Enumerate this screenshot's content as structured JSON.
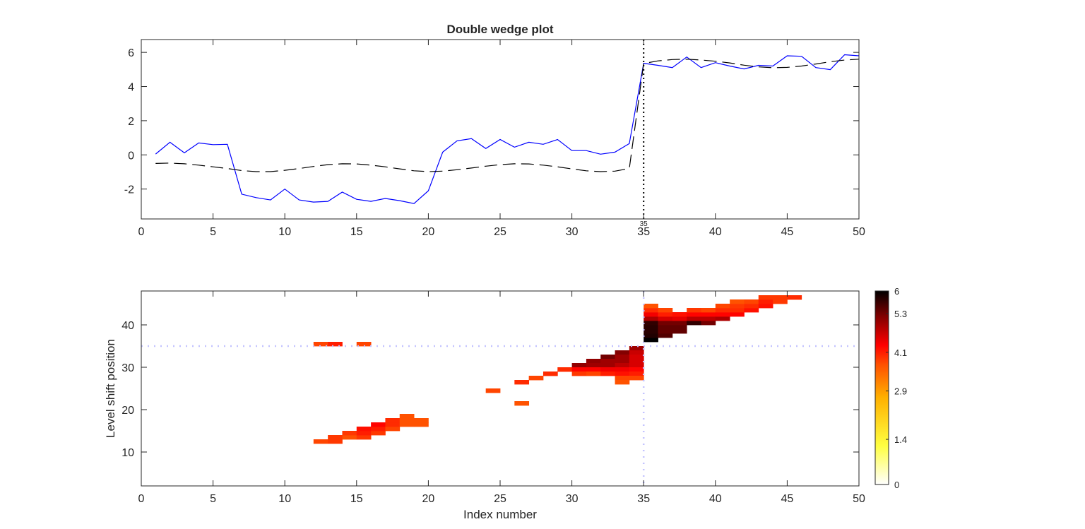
{
  "chart_data": [
    {
      "type": "line",
      "title": "Double wedge plot",
      "xlim": [
        0,
        50
      ],
      "ylim": [
        -3.75,
        6.75
      ],
      "xticks": [
        0,
        5,
        10,
        15,
        20,
        25,
        30,
        35,
        40,
        45,
        50
      ],
      "yticks": [
        -2,
        0,
        2,
        4,
        6
      ],
      "grid": false,
      "x": [
        1,
        2,
        3,
        4,
        5,
        6,
        7,
        8,
        9,
        10,
        11,
        12,
        13,
        14,
        15,
        16,
        17,
        18,
        19,
        20,
        21,
        22,
        23,
        24,
        25,
        26,
        27,
        28,
        29,
        30,
        31,
        32,
        33,
        34,
        35,
        36,
        37,
        38,
        39,
        40,
        41,
        42,
        43,
        44,
        45,
        46,
        47,
        48,
        49,
        50
      ],
      "series": [
        {
          "style": "solid",
          "color": "#0000ff",
          "values": [
            0.05,
            0.74,
            0.12,
            0.7,
            0.6,
            0.62,
            -2.3,
            -2.5,
            -2.64,
            -2.0,
            -2.64,
            -2.76,
            -2.72,
            -2.18,
            -2.6,
            -2.72,
            -2.55,
            -2.68,
            -2.85,
            -2.1,
            0.16,
            0.82,
            0.95,
            0.37,
            0.9,
            0.45,
            0.74,
            0.62,
            0.9,
            0.25,
            0.25,
            0.04,
            0.16,
            0.66,
            5.36,
            5.24,
            5.11,
            5.73,
            5.11,
            5.4,
            5.2,
            5.03,
            5.24,
            5.2,
            5.8,
            5.77,
            5.11,
            4.99,
            5.86,
            5.8
          ]
        },
        {
          "style": "dashed",
          "color": "#000000",
          "values": [
            -0.5,
            -0.48,
            -0.52,
            -0.6,
            -0.7,
            -0.8,
            -0.92,
            -0.98,
            -0.98,
            -0.9,
            -0.8,
            -0.68,
            -0.57,
            -0.52,
            -0.53,
            -0.6,
            -0.7,
            -0.82,
            -0.93,
            -0.98,
            -0.95,
            -0.87,
            -0.77,
            -0.66,
            -0.57,
            -0.52,
            -0.53,
            -0.6,
            -0.7,
            -0.82,
            -0.93,
            -0.98,
            -0.95,
            -0.8,
            5.35,
            5.5,
            5.58,
            5.6,
            5.55,
            5.48,
            5.38,
            5.25,
            5.15,
            5.1,
            5.12,
            5.2,
            5.32,
            5.45,
            5.55,
            5.6
          ]
        }
      ],
      "vline": {
        "x": 35,
        "label": "35",
        "style": "dotted",
        "color": "#000000"
      }
    },
    {
      "type": "heatmap",
      "xlabel": "Index number",
      "ylabel": "Level shift position",
      "xlim": [
        0,
        50
      ],
      "ylim": [
        2,
        48
      ],
      "xticks": [
        0,
        5,
        10,
        15,
        20,
        25,
        30,
        35,
        40,
        45,
        50
      ],
      "yticks": [
        10,
        20,
        30,
        40
      ],
      "guide_lines": {
        "x": 35,
        "y": 35,
        "color": "#c4c4ff"
      },
      "colorbar": {
        "range": [
          0,
          6
        ],
        "ticks": [
          "0",
          "1.4",
          "2.9",
          "4.1",
          "5.3",
          "6"
        ],
        "placement": "right"
      },
      "colormap": [
        [
          0,
          "#ffffff"
        ],
        [
          0.2,
          "#ffff40"
        ],
        [
          0.45,
          "#ffb000"
        ],
        [
          0.62,
          "#ff5000"
        ],
        [
          0.72,
          "#ff0000"
        ],
        [
          0.87,
          "#800000"
        ],
        [
          1,
          "#000000"
        ]
      ],
      "cells": [
        [
          12,
          35,
          3.8
        ],
        [
          13,
          35,
          4.1
        ],
        [
          15,
          35,
          3.8
        ],
        [
          12,
          12,
          3.8
        ],
        [
          13,
          12,
          3.9
        ],
        [
          13,
          13,
          3.9
        ],
        [
          14,
          13,
          3.7
        ],
        [
          15,
          13,
          3.9
        ],
        [
          14,
          14,
          3.9
        ],
        [
          15,
          14,
          4.1
        ],
        [
          16,
          14,
          3.9
        ],
        [
          15,
          15,
          4.2
        ],
        [
          16,
          15,
          4.1
        ],
        [
          17,
          15,
          3.8
        ],
        [
          16,
          16,
          4.3
        ],
        [
          17,
          16,
          4.0
        ],
        [
          18,
          16,
          3.7
        ],
        [
          19,
          16,
          3.7
        ],
        [
          17,
          17,
          4.0
        ],
        [
          18,
          17,
          3.7
        ],
        [
          19,
          17,
          3.7
        ],
        [
          18,
          18,
          3.7
        ],
        [
          24,
          24,
          3.8
        ],
        [
          26,
          21,
          3.7
        ],
        [
          26,
          26,
          4.0
        ],
        [
          27,
          27,
          3.8
        ],
        [
          28,
          28,
          4.0
        ],
        [
          29,
          29,
          4.0
        ],
        [
          30,
          30,
          5.1
        ],
        [
          30,
          29,
          4.3
        ],
        [
          30,
          28,
          3.9
        ],
        [
          31,
          31,
          5.1
        ],
        [
          31,
          30,
          5.0
        ],
        [
          31,
          29,
          4.3
        ],
        [
          31,
          28,
          3.8
        ],
        [
          32,
          32,
          5.3
        ],
        [
          32,
          31,
          5.0
        ],
        [
          32,
          30,
          5.0
        ],
        [
          32,
          29,
          4.4
        ],
        [
          32,
          28,
          4.1
        ],
        [
          33,
          33,
          5.2
        ],
        [
          33,
          32,
          5.0
        ],
        [
          33,
          31,
          5.0
        ],
        [
          33,
          30,
          4.8
        ],
        [
          33,
          29,
          4.4
        ],
        [
          33,
          28,
          4.2
        ],
        [
          33,
          27,
          3.8
        ],
        [
          33,
          26,
          3.7
        ],
        [
          34,
          34,
          5.0
        ],
        [
          34,
          33,
          4.7
        ],
        [
          34,
          32,
          4.6
        ],
        [
          34,
          31,
          4.6
        ],
        [
          34,
          30,
          4.6
        ],
        [
          34,
          29,
          4.3
        ],
        [
          34,
          28,
          4.1
        ],
        [
          34,
          27,
          3.8
        ],
        [
          35,
          36,
          6.0
        ],
        [
          35,
          37,
          5.8
        ],
        [
          35,
          38,
          5.75
        ],
        [
          35,
          39,
          5.75
        ],
        [
          35,
          40,
          5.7
        ],
        [
          35,
          41,
          4.9
        ],
        [
          35,
          42,
          4.4
        ],
        [
          35,
          43,
          4.0
        ],
        [
          35,
          44,
          3.7
        ],
        [
          36,
          37,
          5.5
        ],
        [
          36,
          38,
          5.4
        ],
        [
          36,
          39,
          5.4
        ],
        [
          36,
          40,
          5.3
        ],
        [
          36,
          41,
          4.6
        ],
        [
          36,
          42,
          4.1
        ],
        [
          36,
          43,
          3.8
        ],
        [
          37,
          38,
          5.4
        ],
        [
          37,
          39,
          5.4
        ],
        [
          37,
          40,
          5.3
        ],
        [
          37,
          41,
          4.5
        ],
        [
          37,
          42,
          4.2
        ],
        [
          38,
          40,
          5.7
        ],
        [
          38,
          41,
          4.8
        ],
        [
          38,
          42,
          4.3
        ],
        [
          38,
          43,
          3.9
        ],
        [
          39,
          40,
          5.3
        ],
        [
          39,
          41,
          4.8
        ],
        [
          39,
          42,
          4.3
        ],
        [
          39,
          43,
          3.8
        ],
        [
          40,
          41,
          4.9
        ],
        [
          40,
          42,
          4.3
        ],
        [
          40,
          43,
          4.0
        ],
        [
          40,
          44,
          3.8
        ],
        [
          41,
          42,
          4.3
        ],
        [
          41,
          43,
          4.0
        ],
        [
          41,
          44,
          3.9
        ],
        [
          41,
          45,
          3.7
        ],
        [
          42,
          43,
          4.2
        ],
        [
          42,
          44,
          4.0
        ],
        [
          42,
          45,
          3.8
        ],
        [
          43,
          44,
          4.2
        ],
        [
          43,
          45,
          4.1
        ],
        [
          43,
          46,
          3.9
        ],
        [
          44,
          45,
          3.9
        ],
        [
          44,
          46,
          3.9
        ],
        [
          45,
          46,
          4.0
        ]
      ]
    }
  ]
}
